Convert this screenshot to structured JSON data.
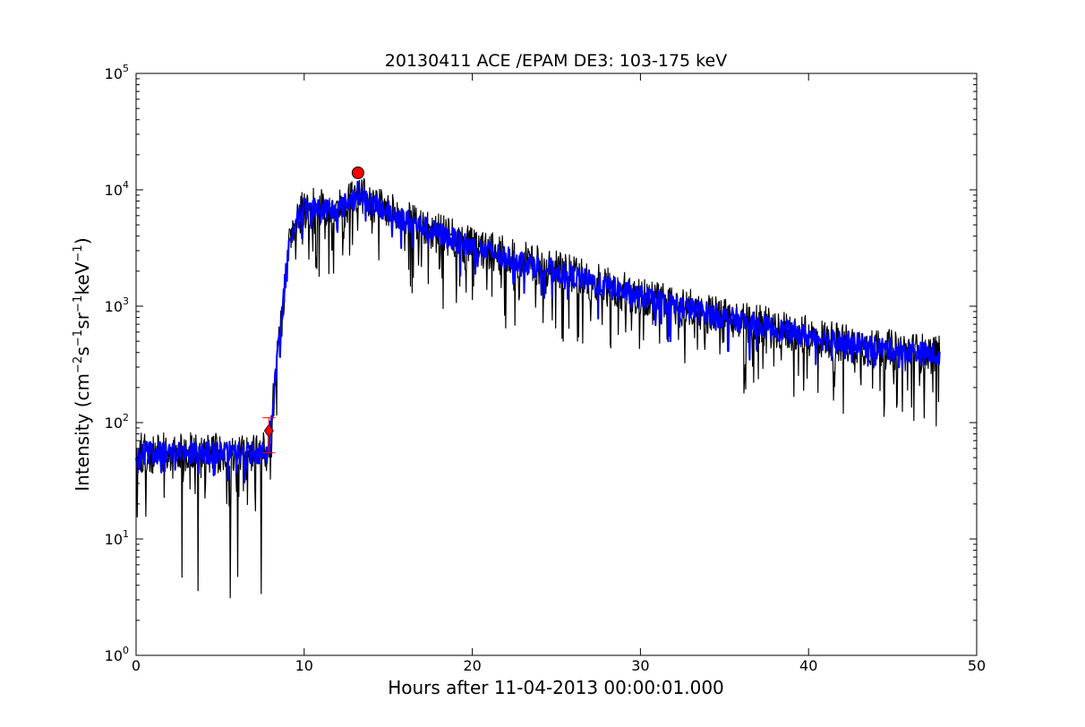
{
  "chart_data": {
    "type": "line",
    "title": "20130411 ACE /EPAM DE3: 103-175 keV",
    "xlabel": "Hours after 11-04-2013 00:00:01.000",
    "ylabel": {
      "prefix": "Intensity (cm",
      "parts": [
        {
          "text": "Intensity (cm",
          "sup": "−2"
        },
        {
          "text": "s",
          "sup": "−1"
        },
        {
          "text": " sr",
          "sup": "−1"
        },
        {
          "text": " keV",
          "sup": "−1"
        },
        {
          "text": ")",
          "sup": ""
        }
      ]
    },
    "x_range": [
      0,
      50
    ],
    "y_scale": "log",
    "y_range": [
      1,
      100000
    ],
    "x_ticks": [
      "0",
      "10",
      "20",
      "30",
      "40",
      "50"
    ],
    "y_ticks": [
      {
        "base": "10",
        "exp": "0"
      },
      {
        "base": "10",
        "exp": "1"
      },
      {
        "base": "10",
        "exp": "2"
      },
      {
        "base": "10",
        "exp": "3"
      },
      {
        "base": "10",
        "exp": "4"
      },
      {
        "base": "10",
        "exp": "5"
      }
    ],
    "grid": false,
    "series": [
      {
        "color": "#000000",
        "profile_hours": [
          0,
          7.8,
          8.0,
          8.3,
          8.7,
          9.0,
          9.5,
          10,
          11,
          12,
          12.6,
          13.2,
          14,
          16,
          20,
          25,
          30,
          35,
          40,
          45,
          47.8
        ],
        "profile_values": [
          55,
          55,
          80,
          250,
          900,
          2800,
          5500,
          6800,
          7000,
          6700,
          7800,
          9500,
          7500,
          5500,
          3200,
          2000,
          1200,
          800,
          550,
          420,
          380
        ],
        "noise": "high (spiky downward dips)"
      },
      {
        "color": "#0000ff",
        "profile_hours": [
          0,
          7.8,
          8.0,
          8.3,
          8.7,
          9.0,
          9.5,
          10,
          11,
          12,
          12.6,
          13.2,
          14,
          16,
          20,
          25,
          30,
          35,
          40,
          45,
          47.8
        ],
        "profile_values": [
          55,
          55,
          80,
          250,
          900,
          2800,
          5500,
          6800,
          7000,
          6700,
          7800,
          9500,
          7500,
          5500,
          3200,
          2000,
          1200,
          800,
          550,
          420,
          380
        ],
        "noise": "moderate (smoothed)"
      }
    ],
    "markers": [
      {
        "type": "circle",
        "color": "#ff0000",
        "x": 13.2,
        "y": 14000
      },
      {
        "type": "diamond",
        "color": "#ff0000",
        "x": 7.9,
        "y": 85
      },
      {
        "type": "errorbar-plus",
        "color": "#ff0000",
        "x": 7.9,
        "y_low": 55,
        "y_high": 110
      }
    ]
  }
}
